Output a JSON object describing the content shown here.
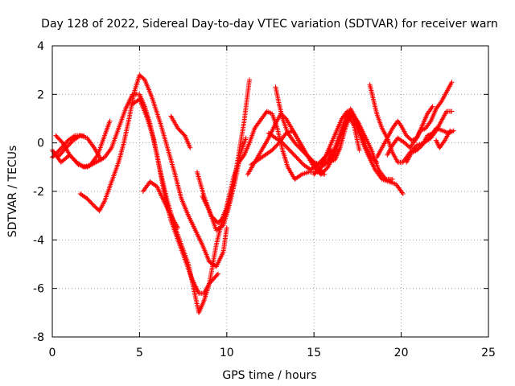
{
  "chart_data": {
    "type": "scatter",
    "title": "Day 128 of 2022, Sidereal Day-to-day VTEC variation (SDTVAR) for receiver warn",
    "xlabel": "GPS time / hours",
    "ylabel": "SDTVAR / TECUs",
    "xlim": [
      0,
      25
    ],
    "ylim": [
      -8,
      4
    ],
    "xticks": [
      0,
      5,
      10,
      15,
      20,
      25
    ],
    "yticks": [
      -8,
      -6,
      -4,
      -2,
      0,
      2,
      4
    ],
    "grid": true,
    "marker": "+",
    "series_color": "#ff0000",
    "series": [
      {
        "points": [
          [
            0.0,
            -0.3
          ],
          [
            0.5,
            -0.8
          ],
          [
            1.0,
            -0.5
          ],
          [
            1.5,
            -0.9
          ],
          [
            2.0,
            -1.0
          ],
          [
            2.5,
            -0.8
          ],
          [
            3.0,
            -0.6
          ],
          [
            3.4,
            -0.2
          ],
          [
            3.8,
            0.6
          ],
          [
            4.2,
            1.4
          ],
          [
            4.6,
            2.0
          ],
          [
            5.0,
            2.0
          ],
          [
            5.3,
            1.5
          ],
          [
            5.6,
            0.8
          ],
          [
            6.0,
            -0.5
          ],
          [
            6.4,
            -2.0
          ],
          [
            6.8,
            -3.2
          ],
          [
            7.2,
            -4.0
          ],
          [
            7.6,
            -4.8
          ],
          [
            8.0,
            -5.6
          ],
          [
            8.4,
            -6.2
          ],
          [
            8.7,
            -6.2
          ],
          [
            9.0,
            -5.8
          ],
          [
            9.5,
            -5.4
          ]
        ]
      },
      {
        "points": [
          [
            0.2,
            0.3
          ],
          [
            0.6,
            0.0
          ],
          [
            1.0,
            -0.5
          ],
          [
            1.4,
            -0.8
          ],
          [
            1.8,
            -1.0
          ],
          [
            2.2,
            -0.9
          ],
          [
            2.6,
            -0.5
          ],
          [
            3.0,
            0.3
          ],
          [
            3.3,
            0.9
          ]
        ]
      },
      {
        "points": [
          [
            0.3,
            -0.6
          ],
          [
            0.8,
            -0.2
          ],
          [
            1.2,
            0.1
          ],
          [
            1.6,
            0.3
          ],
          [
            2.0,
            0.2
          ],
          [
            2.4,
            -0.2
          ],
          [
            2.8,
            -0.7
          ]
        ]
      },
      {
        "points": [
          [
            0.0,
            -0.6
          ],
          [
            0.4,
            -0.3
          ],
          [
            0.9,
            0.1
          ],
          [
            1.3,
            0.3
          ],
          [
            1.8,
            0.3
          ]
        ]
      },
      {
        "points": [
          [
            1.6,
            -2.1
          ],
          [
            2.0,
            -2.3
          ],
          [
            2.4,
            -2.6
          ],
          [
            2.7,
            -2.8
          ],
          [
            3.0,
            -2.4
          ],
          [
            3.4,
            -1.6
          ],
          [
            3.8,
            -0.8
          ],
          [
            4.1,
            0.0
          ],
          [
            4.4,
            1.0
          ],
          [
            4.7,
            2.1
          ],
          [
            5.0,
            2.8
          ],
          [
            5.3,
            2.6
          ],
          [
            5.7,
            1.9
          ],
          [
            6.2,
            0.8
          ],
          [
            6.6,
            -0.2
          ],
          [
            7.0,
            -1.2
          ],
          [
            7.4,
            -2.3
          ],
          [
            7.8,
            -3.0
          ],
          [
            8.2,
            -3.6
          ],
          [
            8.6,
            -4.2
          ],
          [
            9.0,
            -4.9
          ],
          [
            9.4,
            -5.1
          ],
          [
            9.8,
            -4.5
          ],
          [
            10.0,
            -3.5
          ]
        ]
      },
      {
        "points": [
          [
            4.6,
            1.6
          ],
          [
            5.0,
            1.8
          ],
          [
            5.4,
            1.1
          ],
          [
            5.8,
            0.2
          ],
          [
            6.2,
            -1.2
          ],
          [
            6.6,
            -2.4
          ],
          [
            7.0,
            -3.4
          ],
          [
            7.4,
            -4.2
          ],
          [
            7.8,
            -5.0
          ],
          [
            8.1,
            -6.0
          ],
          [
            8.4,
            -7.0
          ],
          [
            8.7,
            -6.5
          ],
          [
            9.0,
            -5.8
          ],
          [
            9.4,
            -4.2
          ],
          [
            9.8,
            -3.0
          ],
          [
            10.1,
            -2.5
          ]
        ]
      },
      {
        "points": [
          [
            5.2,
            -2.0
          ],
          [
            5.6,
            -1.6
          ],
          [
            6.0,
            -1.8
          ],
          [
            6.4,
            -2.4
          ],
          [
            6.8,
            -3.0
          ],
          [
            7.2,
            -3.5
          ]
        ]
      },
      {
        "points": [
          [
            6.8,
            1.1
          ],
          [
            7.2,
            0.6
          ],
          [
            7.6,
            0.3
          ],
          [
            7.9,
            -0.2
          ]
        ]
      },
      {
        "points": [
          [
            8.3,
            -1.2
          ],
          [
            8.7,
            -2.2
          ],
          [
            9.1,
            -3.0
          ],
          [
            9.5,
            -3.3
          ],
          [
            9.9,
            -3.0
          ],
          [
            10.2,
            -2.4
          ],
          [
            10.5,
            -1.5
          ],
          [
            10.8,
            -0.4
          ],
          [
            11.1,
            0.2
          ]
        ]
      },
      {
        "points": [
          [
            8.6,
            -2.2
          ],
          [
            9.0,
            -2.8
          ],
          [
            9.4,
            -3.6
          ],
          [
            9.8,
            -3.4
          ],
          [
            10.1,
            -2.7
          ],
          [
            10.4,
            -1.7
          ],
          [
            10.7,
            -0.4
          ],
          [
            11.0,
            0.9
          ],
          [
            11.3,
            2.6
          ]
        ]
      },
      {
        "points": [
          [
            10.0,
            -2.6
          ],
          [
            10.4,
            -1.4
          ],
          [
            10.7,
            -0.8
          ],
          [
            11.0,
            -0.5
          ],
          [
            11.3,
            0.0
          ],
          [
            11.6,
            0.6
          ],
          [
            12.0,
            1.0
          ],
          [
            12.3,
            1.3
          ],
          [
            12.6,
            1.2
          ],
          [
            12.9,
            0.6
          ],
          [
            13.2,
            -0.3
          ],
          [
            13.5,
            -1.0
          ],
          [
            13.9,
            -1.5
          ],
          [
            14.3,
            -1.3
          ],
          [
            14.7,
            -1.2
          ],
          [
            15.2,
            -1.2
          ],
          [
            15.6,
            -1.3
          ]
        ]
      },
      {
        "points": [
          [
            11.2,
            -1.3
          ],
          [
            11.6,
            -0.8
          ],
          [
            12.0,
            -0.3
          ],
          [
            12.4,
            0.2
          ],
          [
            12.8,
            0.8
          ],
          [
            13.1,
            1.2
          ],
          [
            13.4,
            1.0
          ],
          [
            13.8,
            0.5
          ],
          [
            14.2,
            0.0
          ],
          [
            14.6,
            -0.5
          ],
          [
            15.0,
            -1.0
          ],
          [
            15.4,
            -1.3
          ],
          [
            15.8,
            -1.0
          ],
          [
            16.2,
            -0.4
          ],
          [
            16.6,
            0.4
          ],
          [
            17.0,
            1.1
          ],
          [
            17.3,
            0.7
          ],
          [
            17.6,
            -0.3
          ]
        ]
      },
      {
        "points": [
          [
            11.4,
            -0.9
          ],
          [
            11.8,
            -0.7
          ],
          [
            12.2,
            -0.5
          ],
          [
            12.6,
            -0.3
          ],
          [
            13.0,
            0.0
          ],
          [
            13.4,
            0.4
          ],
          [
            13.8,
            0.5
          ],
          [
            14.2,
            0.0
          ],
          [
            14.6,
            -0.5
          ],
          [
            15.0,
            -0.8
          ],
          [
            15.4,
            -0.9
          ],
          [
            15.8,
            -0.7
          ],
          [
            16.2,
            -0.2
          ],
          [
            16.5,
            0.4
          ],
          [
            16.8,
            1.0
          ],
          [
            17.1,
            1.4
          ],
          [
            17.4,
            1.0
          ],
          [
            17.7,
            0.4
          ],
          [
            18.0,
            -0.2
          ],
          [
            18.3,
            -0.6
          ],
          [
            18.6,
            -0.8
          ]
        ]
      },
      {
        "points": [
          [
            12.4,
            0.4
          ],
          [
            12.8,
            0.2
          ],
          [
            13.2,
            0.0
          ],
          [
            13.6,
            -0.3
          ],
          [
            14.0,
            -0.6
          ],
          [
            14.4,
            -0.9
          ],
          [
            14.8,
            -1.1
          ],
          [
            15.2,
            -0.9
          ],
          [
            15.6,
            -0.6
          ],
          [
            16.0,
            -0.3
          ]
        ]
      },
      {
        "points": [
          [
            12.8,
            2.3
          ],
          [
            13.0,
            1.6
          ],
          [
            13.2,
            1.0
          ],
          [
            13.5,
            0.4
          ],
          [
            13.9,
            0.0
          ],
          [
            14.3,
            -0.3
          ],
          [
            14.7,
            -0.6
          ],
          [
            15.1,
            -0.9
          ],
          [
            15.5,
            -1.2
          ]
        ]
      },
      {
        "points": [
          [
            15.4,
            -0.9
          ],
          [
            15.7,
            -0.5
          ],
          [
            16.0,
            0.0
          ],
          [
            16.3,
            0.5
          ],
          [
            16.6,
            1.0
          ],
          [
            16.9,
            1.3
          ],
          [
            17.2,
            1.1
          ],
          [
            17.5,
            0.6
          ],
          [
            17.8,
            0.0
          ],
          [
            18.1,
            -0.5
          ],
          [
            18.5,
            -1.1
          ],
          [
            18.9,
            -1.5
          ],
          [
            19.3,
            -1.6
          ],
          [
            19.7,
            -1.7
          ],
          [
            20.1,
            -2.1
          ]
        ]
      },
      {
        "points": [
          [
            15.0,
            -1.3
          ],
          [
            15.4,
            -1.0
          ],
          [
            15.8,
            -0.8
          ],
          [
            16.2,
            -0.7
          ],
          [
            16.5,
            -0.2
          ],
          [
            16.8,
            0.6
          ],
          [
            17.1,
            1.2
          ],
          [
            17.5,
            0.9
          ],
          [
            17.9,
            0.3
          ],
          [
            18.3,
            -0.3
          ],
          [
            18.7,
            -1.1
          ],
          [
            19.1,
            -1.5
          ],
          [
            19.5,
            -1.5
          ]
        ]
      },
      {
        "points": [
          [
            18.2,
            2.4
          ],
          [
            18.4,
            1.8
          ],
          [
            18.6,
            1.2
          ],
          [
            18.9,
            0.6
          ],
          [
            19.2,
            0.2
          ],
          [
            19.5,
            -0.4
          ],
          [
            19.8,
            -0.8
          ],
          [
            20.1,
            -0.8
          ],
          [
            20.5,
            -0.4
          ],
          [
            20.9,
            -0.1
          ],
          [
            21.3,
            0.0
          ],
          [
            21.7,
            0.2
          ],
          [
            22.0,
            0.5
          ],
          [
            22.3,
            0.9
          ],
          [
            22.6,
            1.3
          ],
          [
            22.9,
            1.3
          ]
        ]
      },
      {
        "points": [
          [
            18.6,
            -0.6
          ],
          [
            18.9,
            -0.2
          ],
          [
            19.2,
            0.2
          ],
          [
            19.5,
            0.6
          ],
          [
            19.8,
            0.9
          ],
          [
            20.0,
            0.7
          ],
          [
            20.3,
            0.3
          ],
          [
            20.6,
            0.1
          ],
          [
            20.9,
            0.2
          ],
          [
            21.2,
            0.7
          ],
          [
            21.5,
            1.2
          ],
          [
            21.8,
            1.5
          ]
        ]
      },
      {
        "points": [
          [
            19.2,
            -0.5
          ],
          [
            19.5,
            -0.1
          ],
          [
            19.8,
            0.2
          ],
          [
            20.2,
            0.0
          ],
          [
            20.5,
            -0.2
          ],
          [
            20.8,
            0.1
          ],
          [
            21.1,
            0.5
          ],
          [
            21.4,
            0.6
          ],
          [
            21.7,
            0.9
          ],
          [
            22.0,
            1.4
          ],
          [
            22.3,
            1.7
          ],
          [
            22.6,
            2.1
          ],
          [
            22.9,
            2.5
          ]
        ]
      },
      {
        "points": [
          [
            20.3,
            -0.8
          ],
          [
            20.6,
            -0.4
          ],
          [
            20.9,
            -0.3
          ],
          [
            21.2,
            -0.1
          ],
          [
            21.5,
            0.3
          ],
          [
            21.8,
            0.4
          ]
        ]
      },
      {
        "points": [
          [
            21.6,
            0.2
          ],
          [
            22.0,
            0.6
          ],
          [
            22.4,
            0.5
          ],
          [
            22.7,
            0.4
          ],
          [
            23.0,
            0.5
          ]
        ]
      },
      {
        "points": [
          [
            22.0,
            0.1
          ],
          [
            22.2,
            -0.2
          ],
          [
            22.5,
            0.1
          ],
          [
            22.8,
            0.5
          ]
        ]
      }
    ]
  }
}
